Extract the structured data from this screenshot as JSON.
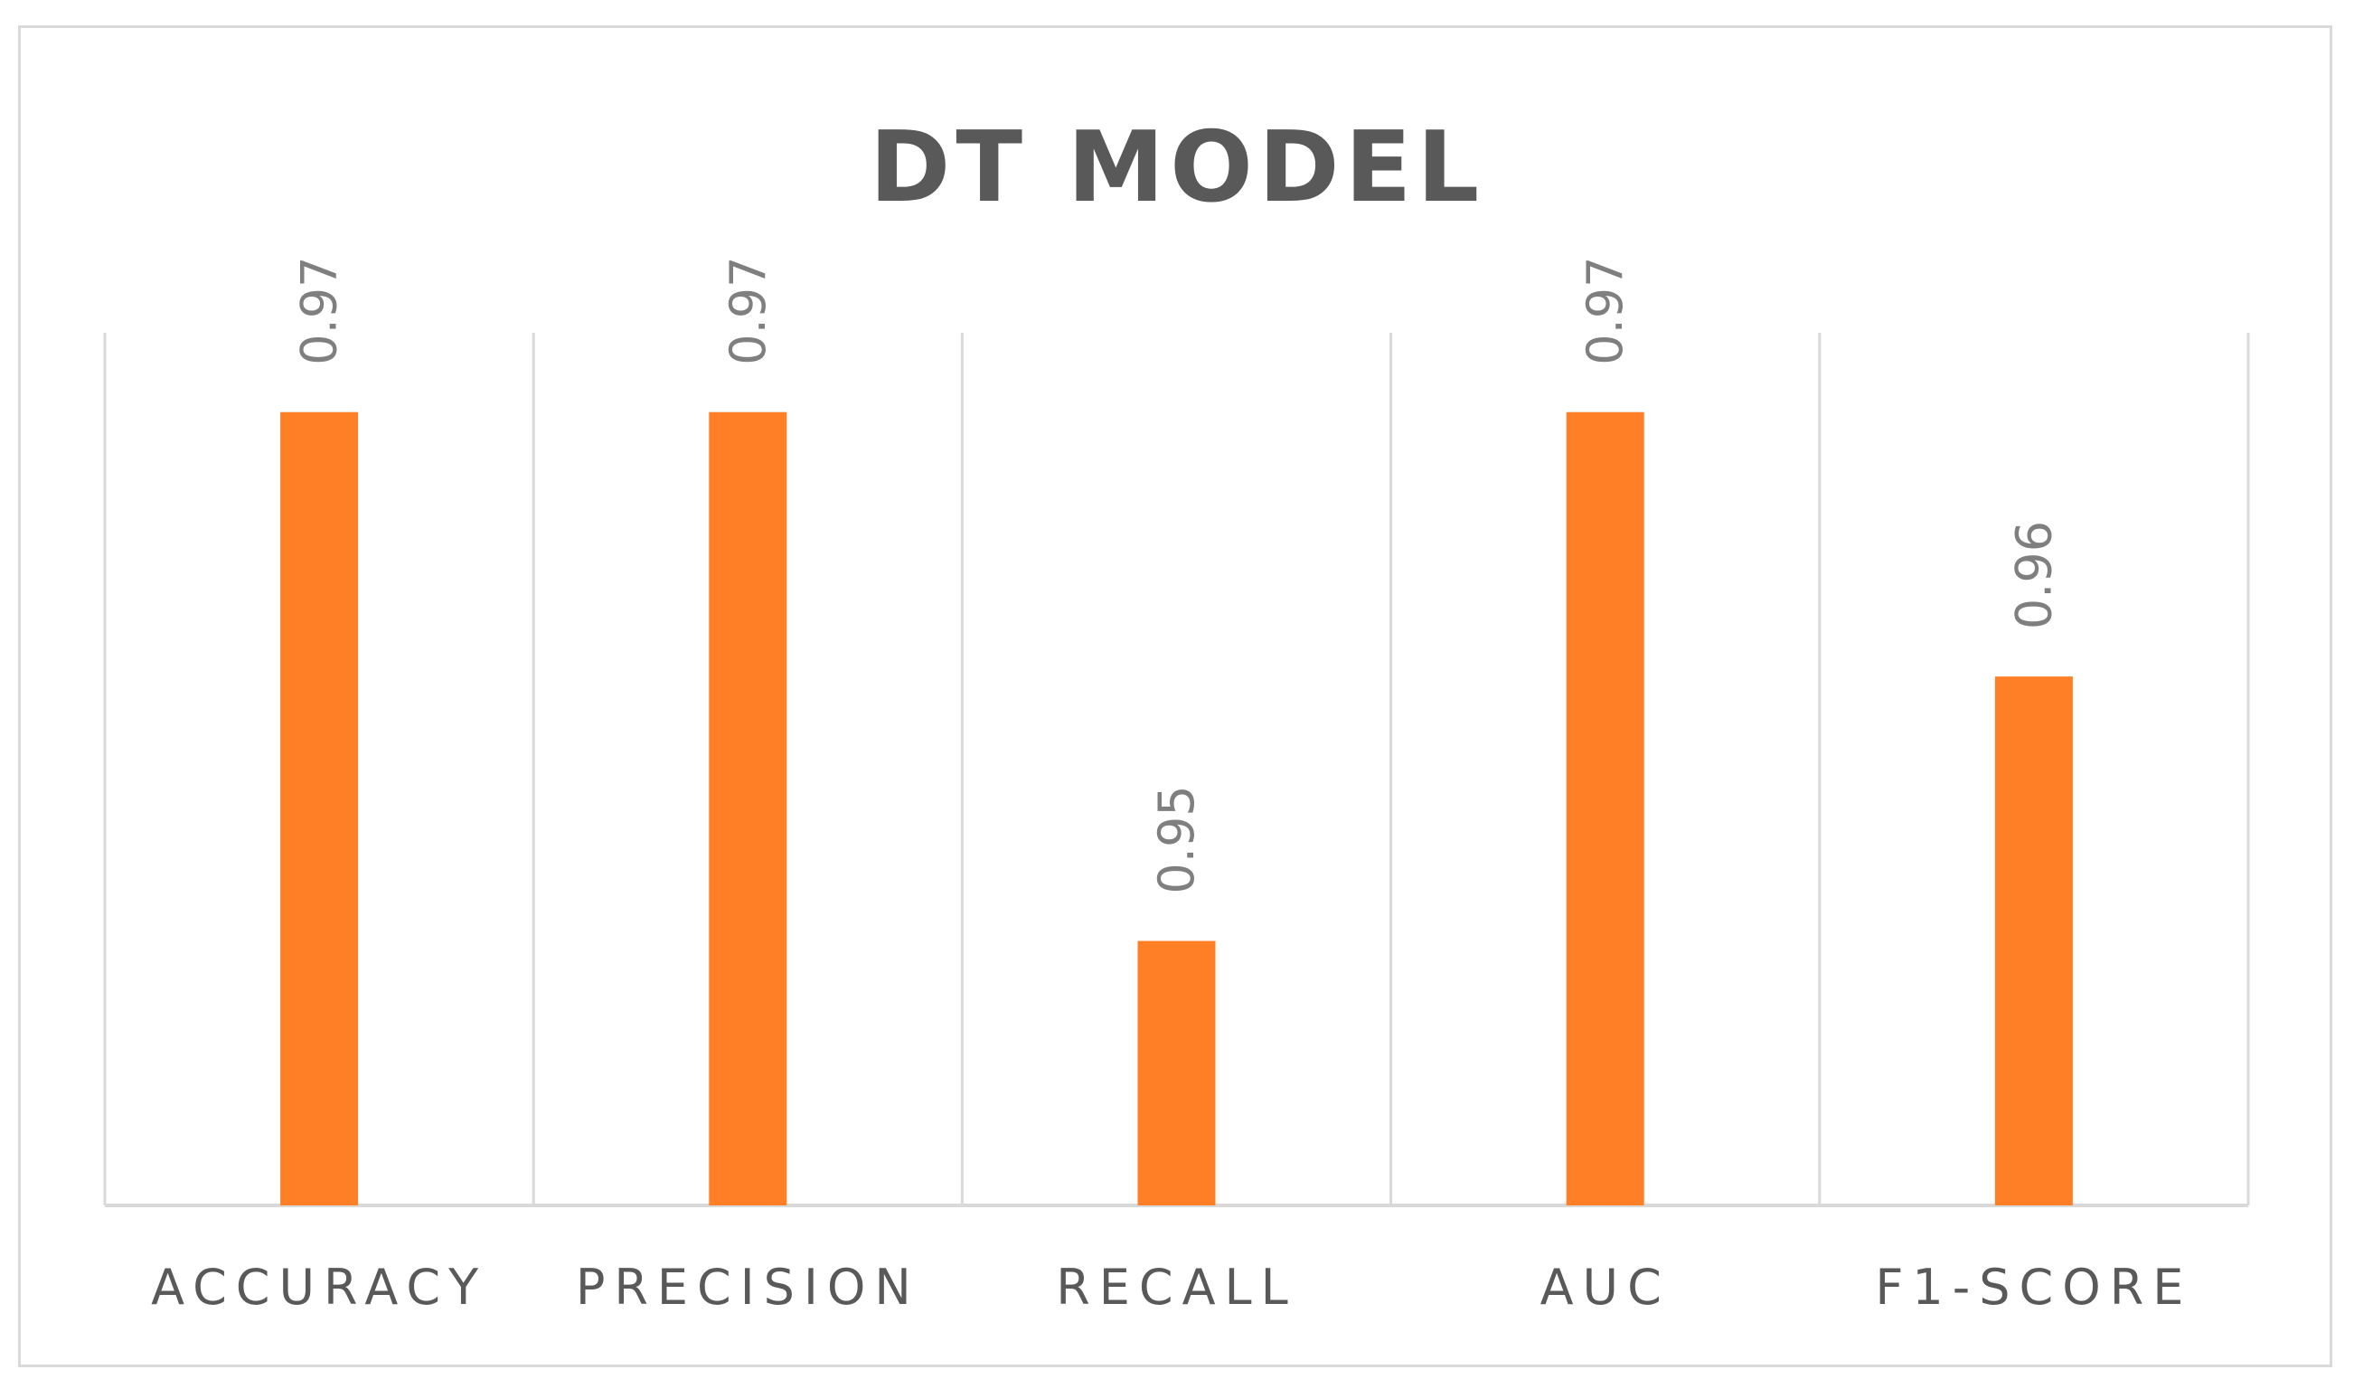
{
  "chart_data": {
    "type": "bar",
    "title": "DT MODEL",
    "categories": [
      "ACCURACY",
      "PRECISION",
      "RECALL",
      "AUC",
      "F1-SCORE"
    ],
    "values": [
      0.97,
      0.97,
      0.95,
      0.97,
      0.96
    ],
    "data_labels": [
      "0.97",
      "0.97",
      "0.95",
      "0.97",
      "0.96"
    ],
    "xlabel": "",
    "ylabel": "",
    "ylim": [
      0.94,
      0.973
    ],
    "bar_color": "#FF7F27",
    "grid": "vertical",
    "legend": "none",
    "data_label_orientation": "vertical"
  }
}
